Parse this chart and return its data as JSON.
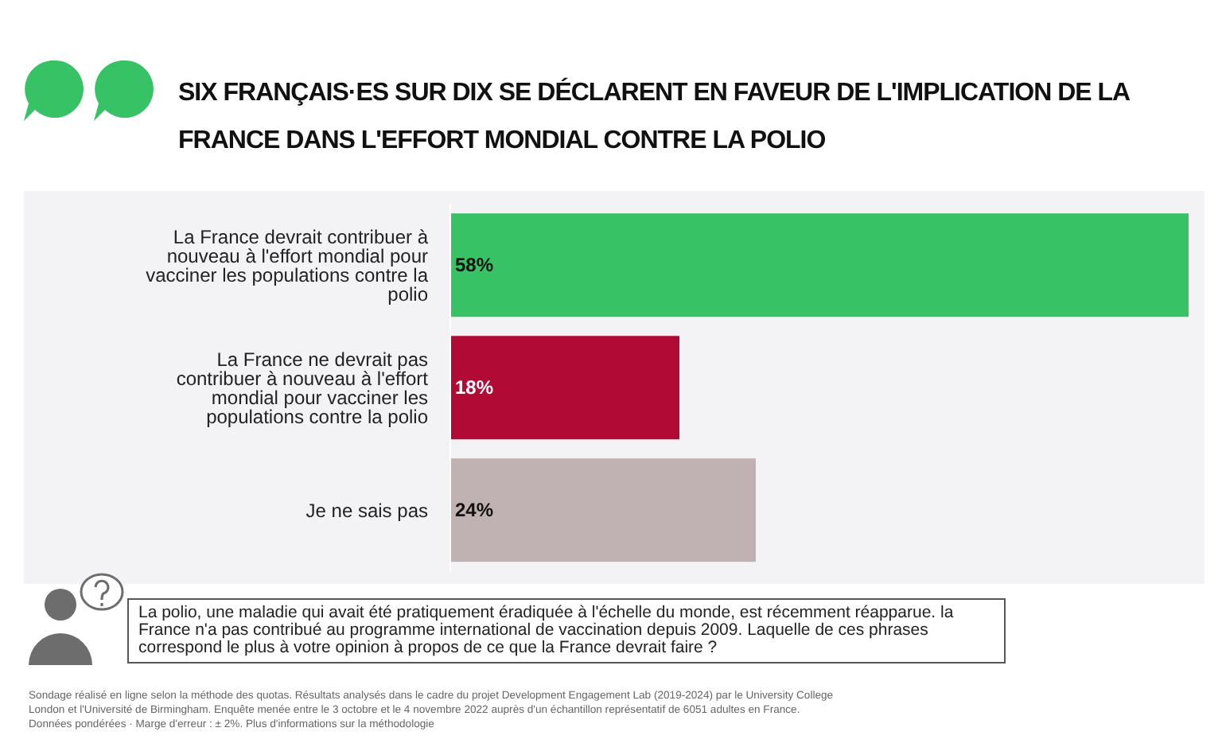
{
  "chart_data": {
    "type": "bar",
    "orientation": "horizontal",
    "title": "SIX FRANÇAIS·ES SUR DIX SE DÉCLARENT EN FAVEUR DE L'IMPLICATION DE LA FRANCE DANS L'EFFORT MONDIAL CONTRE LA POLIO",
    "categories": [
      "La France devrait contribuer à nouveau à l'effort mondial pour vacciner les populations contre la polio",
      "La France ne devrait pas contribuer à nouveau à l'effort mondial pour vacciner les populations contre la polio",
      "Je ne sais pas"
    ],
    "values": [
      58,
      18,
      24
    ],
    "colors": [
      "#36c265",
      "#b00a35",
      "#c0b2b2"
    ],
    "value_labels": [
      "58%",
      "18%",
      "24%"
    ],
    "annotations": [
      "La polio, une maladie qui avait été pratiquement éradiquée à l'échelle du monde, est récemment réapparue. la France n'a pas contribué au programme international de vaccination depuis 2009. Laquelle de ces phrases correspond le plus à votre opinion à propos de ce que la France devrait faire ?",
      "Sondage réalisé en ligne selon la méthode des quotas. Résultats analysés dans le cadre du projet Development Engagement Lab (2019-2024) par le University College London et l'Université de Birmingham. Enquête menée entre le 3 octobre et le 4 novembre 2022 auprès d'un échantillon représentatif de 6051 adultes en France. Données pondérées · Marge d'erreur : ± 2%. Plus d'informations sur la méthodologie"
    ]
  }
}
